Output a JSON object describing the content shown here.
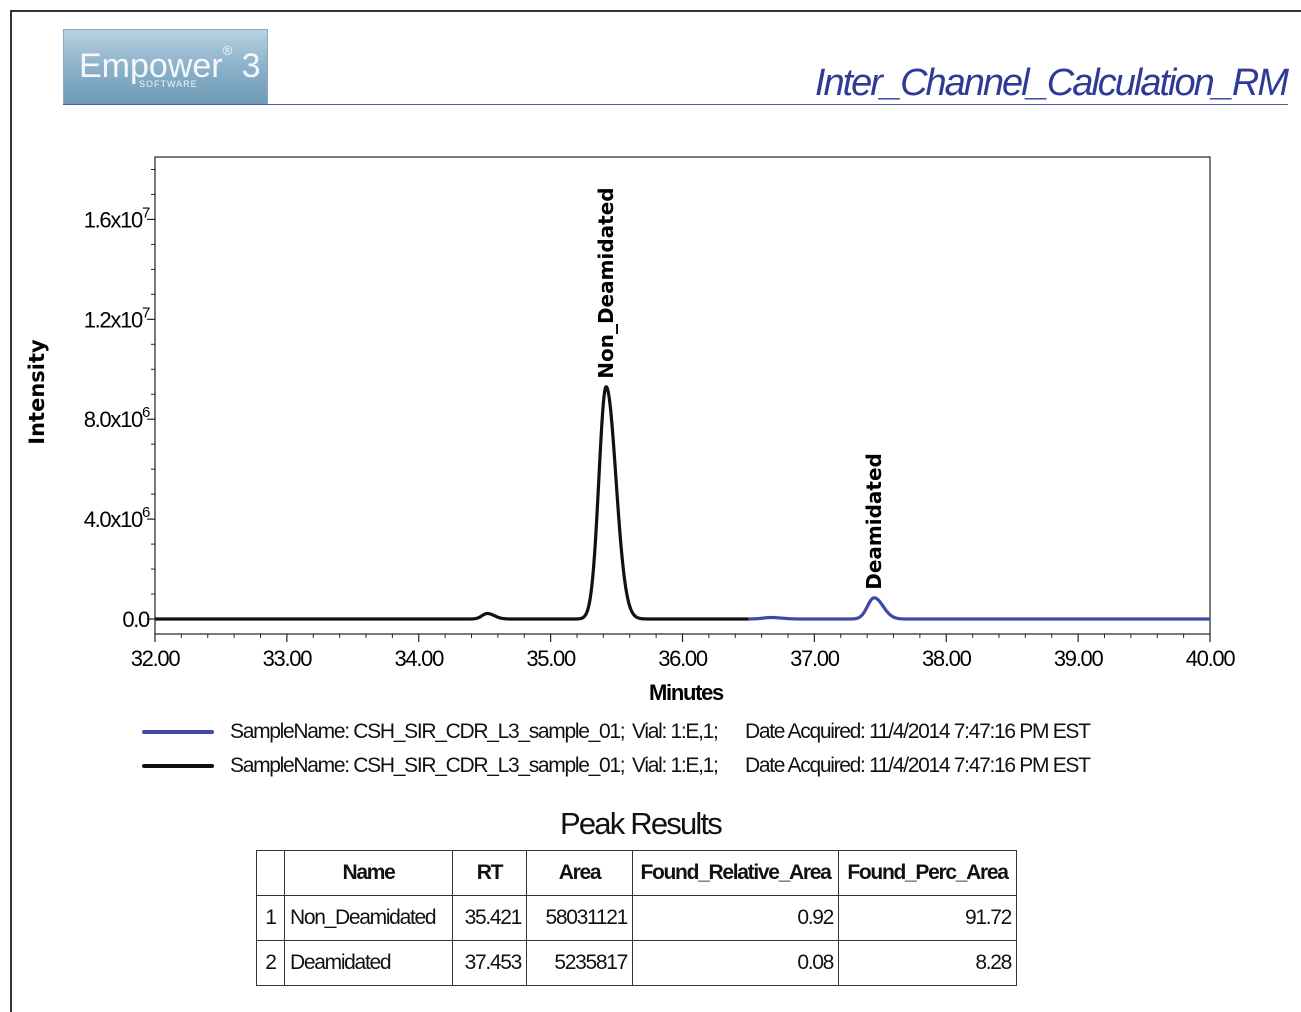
{
  "header": {
    "logo_text": "Empower",
    "logo_version": "3",
    "logo_sub": "SOFTWARE",
    "report_title": "Inter_Channel_Calculation_RM"
  },
  "chart_data": {
    "type": "line",
    "xlabel": "Minutes",
    "ylabel": "Intensity",
    "xlim": [
      32.0,
      40.0
    ],
    "ylim": [
      -600000,
      18500000
    ],
    "x_ticks": [
      {
        "value": 32,
        "label": "32.00"
      },
      {
        "value": 33,
        "label": "33.00"
      },
      {
        "value": 34,
        "label": "34.00"
      },
      {
        "value": 35,
        "label": "35.00"
      },
      {
        "value": 36,
        "label": "36.00"
      },
      {
        "value": 37,
        "label": "37.00"
      },
      {
        "value": 38,
        "label": "38.00"
      },
      {
        "value": 39,
        "label": "39.00"
      },
      {
        "value": 40,
        "label": "40.00"
      }
    ],
    "y_ticks": [
      {
        "value": 0,
        "label": "0.0"
      },
      {
        "value": 4000000,
        "label": "4.0x10",
        "exp": "6"
      },
      {
        "value": 8000000,
        "label": "8.0x10",
        "exp": "6"
      },
      {
        "value": 12000000,
        "label": "1.2x10",
        "exp": "7"
      },
      {
        "value": 16000000,
        "label": "1.6x10",
        "exp": "7"
      }
    ],
    "series": [
      {
        "color": "#111111",
        "x_range": [
          32.0,
          36.5
        ],
        "baseline": 0,
        "peaks": [
          {
            "rt": 34.52,
            "height": 220000,
            "sigma": 0.04
          },
          {
            "rt": 35.421,
            "height": 9300000,
            "sigma": 0.055
          }
        ]
      },
      {
        "color": "#3c4aa5",
        "x_range": [
          36.5,
          40.0
        ],
        "baseline": 0,
        "peaks": [
          {
            "rt": 36.67,
            "height": 60000,
            "sigma": 0.06
          },
          {
            "rt": 37.453,
            "height": 850000,
            "sigma": 0.05
          }
        ]
      }
    ],
    "annotations": [
      {
        "text": "Non_Deamidated",
        "x": 35.421,
        "y": 9300000
      },
      {
        "text": "Deamidated",
        "x": 37.453,
        "y": 850000
      }
    ]
  },
  "legend": [
    {
      "color": "#3c4aa5",
      "sample": "SampleName: CSH_SIR_CDR_L3_sample_01;",
      "vial": "Vial: 1:E,1;",
      "date": "Date Acquired: 11/4/2014 7:47:16 PM EST"
    },
    {
      "color": "#111111",
      "sample": "SampleName: CSH_SIR_CDR_L3_sample_01;",
      "vial": "Vial: 1:E,1;",
      "date": "Date Acquired: 11/4/2014 7:47:16 PM EST"
    }
  ],
  "peak_results": {
    "title": "Peak Results",
    "columns": [
      "",
      "Name",
      "RT",
      "Area",
      "Found_Relative_Area",
      "Found_Perc_Area"
    ],
    "rows": [
      [
        "1",
        "Non_Deamidated",
        "35.421",
        "58031121",
        "0.92",
        "91.72"
      ],
      [
        "2",
        "Deamidated",
        "37.453",
        "5235817",
        "0.08",
        "8.28"
      ]
    ]
  }
}
